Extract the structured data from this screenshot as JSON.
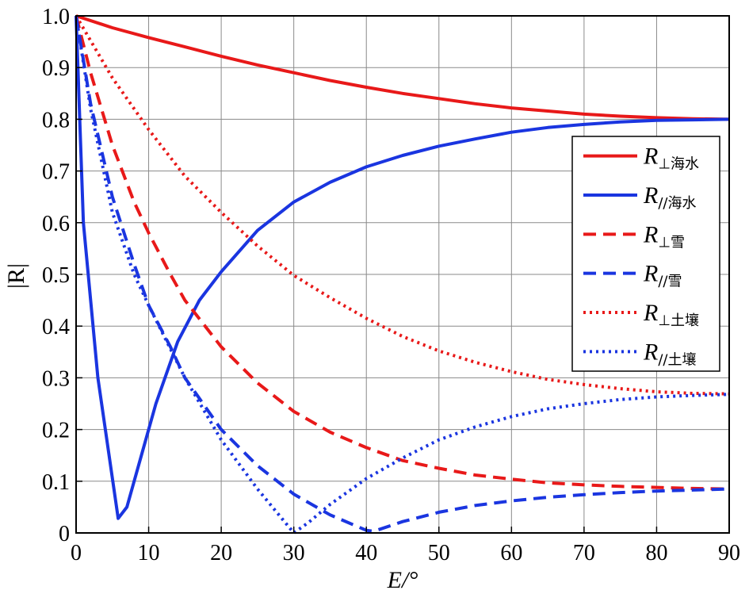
{
  "chart_data": {
    "type": "line",
    "xlabel": "E/°",
    "ylabel": "|R|",
    "xlim": [
      0,
      90
    ],
    "ylim": [
      0,
      1.0
    ],
    "xticks": [
      "0",
      "10",
      "20",
      "30",
      "40",
      "50",
      "60",
      "70",
      "80",
      "90"
    ],
    "yticks": [
      "0",
      "0.1",
      "0.2",
      "0.3",
      "0.4",
      "0.5",
      "0.6",
      "0.7",
      "0.8",
      "0.9",
      "1.0"
    ],
    "grid": true,
    "legend_position": "right-middle",
    "series": [
      {
        "name": "R⊥海水",
        "label_main": "R",
        "label_sub": "⊥海水",
        "color": "#e81919",
        "style": "solid",
        "x": [
          0,
          5,
          10,
          15,
          20,
          25,
          30,
          35,
          40,
          45,
          50,
          55,
          60,
          65,
          70,
          75,
          80,
          85,
          90
        ],
        "y": [
          1.0,
          0.977,
          0.958,
          0.94,
          0.922,
          0.905,
          0.89,
          0.875,
          0.862,
          0.85,
          0.84,
          0.83,
          0.822,
          0.816,
          0.81,
          0.806,
          0.803,
          0.801,
          0.8
        ]
      },
      {
        "name": "R//海水",
        "label_main": "R",
        "label_sub": "//海水",
        "color": "#1a35e0",
        "style": "solid",
        "x": [
          0,
          1,
          3,
          5.8,
          7,
          9,
          11,
          14,
          17,
          20,
          25,
          30,
          35,
          40,
          45,
          50,
          55,
          60,
          65,
          70,
          75,
          80,
          85,
          90
        ],
        "y": [
          1.0,
          0.6,
          0.3,
          0.028,
          0.05,
          0.15,
          0.25,
          0.37,
          0.45,
          0.505,
          0.585,
          0.64,
          0.678,
          0.708,
          0.73,
          0.748,
          0.762,
          0.775,
          0.784,
          0.79,
          0.795,
          0.798,
          0.799,
          0.8
        ]
      },
      {
        "name": "R⊥雪",
        "label_main": "R",
        "label_sub": "⊥雪",
        "color": "#e81919",
        "style": "dashed",
        "x": [
          0,
          2,
          5,
          8,
          10,
          13,
          15,
          20,
          25,
          30,
          35,
          40,
          45,
          50,
          55,
          60,
          65,
          70,
          75,
          80,
          85,
          90
        ],
        "y": [
          1.0,
          0.89,
          0.75,
          0.64,
          0.58,
          0.5,
          0.45,
          0.36,
          0.29,
          0.235,
          0.195,
          0.165,
          0.14,
          0.125,
          0.112,
          0.104,
          0.097,
          0.093,
          0.09,
          0.088,
          0.086,
          0.085
        ]
      },
      {
        "name": "R//雪",
        "label_main": "R",
        "label_sub": "//雪",
        "color": "#1a35e0",
        "style": "dashed",
        "x": [
          0,
          2,
          5,
          8,
          10,
          13,
          15,
          20,
          25,
          30,
          35,
          40,
          41,
          45,
          50,
          55,
          60,
          65,
          70,
          75,
          80,
          85,
          90
        ],
        "y": [
          1.0,
          0.83,
          0.65,
          0.52,
          0.44,
          0.36,
          0.3,
          0.2,
          0.13,
          0.075,
          0.035,
          0.005,
          0.003,
          0.022,
          0.04,
          0.053,
          0.062,
          0.069,
          0.074,
          0.078,
          0.081,
          0.083,
          0.085
        ]
      },
      {
        "name": "R⊥土壤",
        "label_main": "R",
        "label_sub": "⊥土壤",
        "color": "#e81919",
        "style": "dotted",
        "x": [
          0,
          5,
          10,
          15,
          20,
          25,
          30,
          35,
          40,
          45,
          50,
          55,
          60,
          65,
          70,
          75,
          80,
          85,
          90
        ],
        "y": [
          1.0,
          0.88,
          0.78,
          0.69,
          0.62,
          0.555,
          0.498,
          0.455,
          0.415,
          0.38,
          0.352,
          0.33,
          0.312,
          0.297,
          0.287,
          0.279,
          0.273,
          0.27,
          0.269
        ]
      },
      {
        "name": "R//土壤",
        "label_main": "R",
        "label_sub": "//土壤",
        "color": "#1a35e0",
        "style": "dotted",
        "x": [
          0,
          2,
          5,
          8,
          10,
          15,
          20,
          25,
          30,
          32,
          35,
          40,
          45,
          50,
          55,
          60,
          65,
          70,
          75,
          80,
          85,
          90
        ],
        "y": [
          1.0,
          0.82,
          0.62,
          0.5,
          0.44,
          0.3,
          0.18,
          0.085,
          0.0,
          0.02,
          0.055,
          0.105,
          0.145,
          0.18,
          0.205,
          0.225,
          0.24,
          0.25,
          0.258,
          0.263,
          0.266,
          0.268
        ]
      }
    ]
  }
}
